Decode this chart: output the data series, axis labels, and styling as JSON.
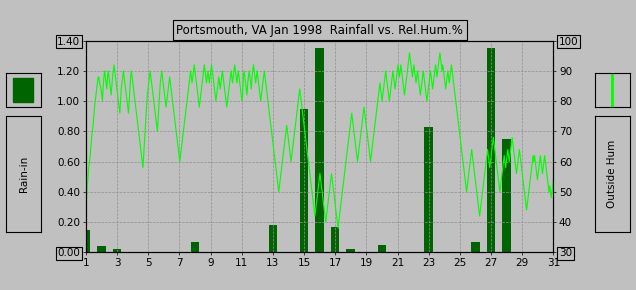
{
  "title": "Portsmouth, VA Jan 1998  Rainfall vs. Rel.Hum.%",
  "ylabel_left": "Rain-in",
  "ylabel_right": "Outside Hum",
  "xlim": [
    1,
    31
  ],
  "ylim_left": [
    0.0,
    1.4
  ],
  "ylim_right": [
    30,
    100
  ],
  "yticks_left": [
    0.0,
    0.2,
    0.4,
    0.6,
    0.8,
    1.0,
    1.2,
    1.4
  ],
  "yticks_right": [
    30,
    40,
    50,
    60,
    70,
    80,
    90,
    100
  ],
  "xticks": [
    1,
    3,
    5,
    7,
    9,
    11,
    13,
    15,
    17,
    19,
    21,
    23,
    25,
    27,
    29,
    31
  ],
  "bg_color": "#c0c0c0",
  "plot_bg_color": "#c0c0c0",
  "bar_color": "#006400",
  "line_color": "#00ff00",
  "rain_vals": [
    0.15,
    0.04,
    0.02,
    0.0,
    0.0,
    0.0,
    0.0,
    0.07,
    0.0,
    0.0,
    0.0,
    0.0,
    0.18,
    0.0,
    0.95,
    1.35,
    0.17,
    0.02,
    0.0,
    0.05,
    0.0,
    0.0,
    0.83,
    0.0,
    0.0,
    0.07,
    1.35,
    0.75,
    0.0,
    0.0,
    0.0
  ],
  "rh_hourly": [
    42,
    48,
    52,
    55,
    58,
    60,
    62,
    65,
    68,
    70,
    72,
    75,
    78,
    80,
    82,
    84,
    86,
    88,
    88,
    86,
    85,
    84,
    82,
    80,
    85,
    88,
    90,
    88,
    86,
    84,
    88,
    90,
    88,
    86,
    84,
    82,
    85,
    88,
    90,
    92,
    90,
    88,
    86,
    84,
    82,
    80,
    78,
    76,
    80,
    84,
    86,
    88,
    90,
    88,
    86,
    84,
    82,
    80,
    78,
    76,
    80,
    84,
    88,
    90,
    88,
    86,
    84,
    82,
    80,
    78,
    76,
    74,
    72,
    70,
    68,
    66,
    64,
    62,
    60,
    58,
    62,
    66,
    70,
    74,
    78,
    82,
    84,
    86,
    88,
    90,
    88,
    86,
    84,
    82,
    80,
    78,
    76,
    74,
    72,
    70,
    74,
    78,
    82,
    86,
    88,
    90,
    88,
    86,
    84,
    82,
    80,
    78,
    80,
    82,
    84,
    86,
    88,
    86,
    84,
    82,
    80,
    78,
    76,
    74,
    72,
    70,
    68,
    66,
    64,
    62,
    60,
    62,
    64,
    66,
    68,
    70,
    72,
    74,
    76,
    78,
    80,
    82,
    84,
    86,
    88,
    90,
    88,
    86,
    88,
    90,
    92,
    90,
    88,
    86,
    84,
    82,
    80,
    78,
    80,
    82,
    84,
    86,
    88,
    90,
    92,
    90,
    88,
    86,
    88,
    90,
    88,
    86,
    88,
    90,
    92,
    90,
    88,
    86,
    84,
    82,
    80,
    82,
    84,
    86,
    88,
    86,
    84,
    86,
    88,
    90,
    88,
    86,
    84,
    82,
    80,
    78,
    80,
    82,
    84,
    86,
    88,
    90,
    88,
    86,
    88,
    90,
    92,
    90,
    88,
    86,
    88,
    90,
    88,
    86,
    84,
    82,
    80,
    82,
    88,
    90,
    88,
    86,
    84,
    82,
    86,
    88,
    90,
    88,
    86,
    84,
    88,
    90,
    92,
    90,
    88,
    86,
    88,
    90,
    88,
    86,
    84,
    82,
    80,
    82,
    84,
    86,
    88,
    90,
    88,
    86,
    84,
    82,
    80,
    78,
    76,
    74,
    72,
    70,
    68,
    66,
    64,
    62,
    60,
    58,
    56,
    54,
    52,
    50,
    52,
    54,
    56,
    58,
    60,
    62,
    64,
    66,
    68,
    70,
    72,
    70,
    68,
    66,
    64,
    62,
    60,
    62,
    64,
    66,
    68,
    70,
    72,
    74,
    76,
    78,
    80,
    82,
    84,
    82,
    80,
    78,
    76,
    74,
    72,
    70,
    68,
    66,
    64,
    62,
    60,
    58,
    56,
    54,
    52,
    50,
    48,
    46,
    44,
    42,
    44,
    46,
    48,
    50,
    52,
    54,
    56,
    54,
    52,
    50,
    48,
    46,
    44,
    42,
    40,
    42,
    44,
    46,
    48,
    50,
    52,
    54,
    56,
    54,
    52,
    50,
    48,
    46,
    44,
    42,
    40,
    38,
    40,
    42,
    44,
    46,
    48,
    50,
    52,
    54,
    56,
    58,
    60,
    62,
    64,
    66,
    68,
    70,
    72,
    74,
    76,
    74,
    72,
    70,
    68,
    66,
    64,
    62,
    60,
    62,
    64,
    66,
    68,
    70,
    72,
    74,
    76,
    78,
    76,
    74,
    72,
    70,
    68,
    66,
    64,
    62,
    60,
    62,
    64,
    66,
    68,
    70,
    72,
    74,
    76,
    78,
    80,
    82,
    84,
    86,
    84,
    82,
    80,
    82,
    84,
    86,
    88,
    90,
    88,
    86,
    84,
    82,
    80,
    82,
    84,
    86,
    88,
    90,
    88,
    86,
    84,
    86,
    88,
    90,
    92,
    90,
    88,
    90,
    92,
    90,
    88,
    86,
    84,
    82,
    84,
    86,
    88,
    90,
    92,
    94,
    96,
    94,
    92,
    90,
    88,
    90,
    92,
    90,
    88,
    86,
    88,
    90,
    88,
    86,
    84,
    82,
    84,
    86,
    88,
    90,
    88,
    86,
    84,
    82,
    80,
    82,
    84,
    86,
    88,
    90,
    88,
    86,
    84,
    86,
    88,
    90,
    92,
    90,
    88,
    90,
    92,
    94,
    96,
    94,
    92,
    90,
    92,
    90,
    88,
    86,
    84,
    86,
    88,
    90,
    88,
    86,
    88,
    90,
    92,
    90,
    88,
    86,
    84,
    82,
    80,
    78,
    76,
    74,
    72,
    70,
    68,
    66,
    64,
    62,
    60,
    58,
    56,
    54,
    52,
    50,
    52,
    54,
    56,
    58,
    60,
    62,
    64,
    62,
    60,
    58,
    56,
    54,
    52,
    50,
    48,
    46,
    44,
    42,
    44,
    46,
    48,
    50,
    52,
    54,
    56,
    58,
    60,
    62,
    64,
    62,
    60,
    58,
    60,
    62,
    64,
    66,
    68,
    66,
    64,
    62,
    60,
    58,
    56,
    54,
    52,
    50,
    52,
    54,
    56,
    58,
    60,
    62,
    60,
    58,
    60,
    62,
    64,
    62,
    60,
    62,
    64,
    66,
    68,
    66,
    64,
    62,
    60,
    58,
    56,
    58,
    60,
    62,
    64,
    62,
    60,
    58,
    56,
    54,
    52,
    50,
    48,
    46,
    44,
    46,
    48,
    50,
    52,
    54,
    56,
    58,
    60,
    62,
    60,
    62,
    60,
    58,
    56,
    54,
    56,
    58,
    60,
    62,
    60,
    58,
    56,
    58,
    60,
    62,
    60,
    58,
    56,
    54,
    52,
    50,
    52,
    50,
    48,
    50,
    52,
    54
  ]
}
